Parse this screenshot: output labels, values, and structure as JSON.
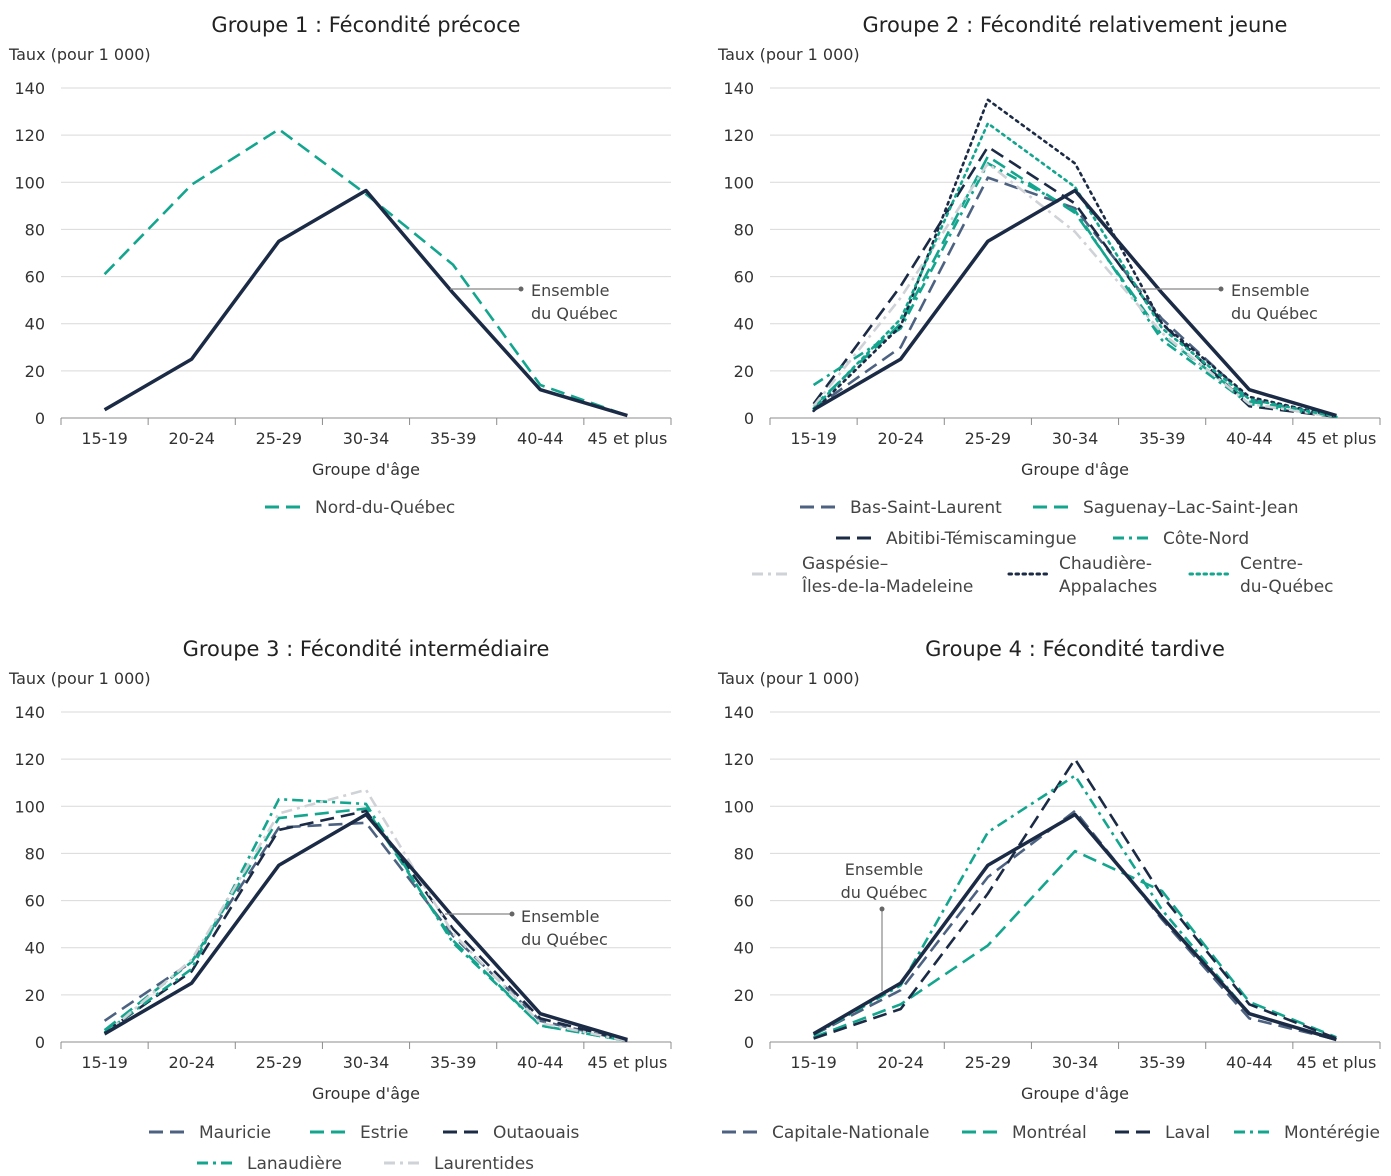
{
  "chart_data": [
    {
      "type": "line",
      "title": "Groupe 1 : Fécondité précoce",
      "ylabel": "Taux (pour 1 000)",
      "xlabel": "Groupe d'âge",
      "categories": [
        "15-19",
        "20-24",
        "25-29",
        "30-34",
        "35-39",
        "40-44",
        "45 et plus"
      ],
      "yticks": [
        "0",
        "20",
        "40",
        "60",
        "80",
        "100",
        "120",
        "140"
      ],
      "ylim": [
        0,
        140
      ],
      "grid": "horizontal",
      "annotation": "Ensemble du Québec",
      "reference": {
        "name": "Ensemble du Québec",
        "color": "#1b2a45",
        "values": [
          3.5,
          25,
          75,
          96.5,
          53,
          12,
          1
        ]
      },
      "series": [
        {
          "name": "Nord-du-Québec",
          "color": "#13a58e",
          "dash": "dash",
          "values": [
            61,
            99,
            122.5,
            95,
            65,
            14,
            1
          ]
        }
      ]
    },
    {
      "type": "line",
      "title": "Groupe 2 : Fécondité relativement jeune",
      "ylabel": "Taux (pour 1 000)",
      "xlabel": "Groupe d'âge",
      "categories": [
        "15-19",
        "20-24",
        "25-29",
        "30-34",
        "35-39",
        "40-44",
        "45 et plus"
      ],
      "yticks": [
        "0",
        "20",
        "40",
        "60",
        "80",
        "100",
        "120",
        "140"
      ],
      "ylim": [
        0,
        140
      ],
      "grid": "horizontal",
      "annotation": "Ensemble du Québec",
      "reference": {
        "name": "Ensemble du Québec",
        "color": "#1b2a45",
        "values": [
          3.5,
          25,
          75,
          96.5,
          53,
          12,
          1
        ]
      },
      "series": [
        {
          "name": "Bas-Saint-Laurent",
          "color": "#4d6281",
          "dash": "dash",
          "values": [
            4,
            30,
            102,
            89,
            42,
            8,
            0.5
          ]
        },
        {
          "name": "Saguenay–Lac-Saint-Jean",
          "color": "#13a58e",
          "dash": "dash",
          "values": [
            5,
            40,
            111,
            87,
            35,
            7,
            0.5
          ]
        },
        {
          "name": "Abitibi-Témiscamingue",
          "color": "#1b2a45",
          "dash": "dash",
          "values": [
            6,
            56,
            115,
            91,
            40,
            5,
            0.5
          ]
        },
        {
          "name": "Côte-Nord",
          "color": "#13a58e",
          "dash": "dashdot",
          "values": [
            14,
            38,
            108,
            88,
            33,
            6,
            0.5
          ]
        },
        {
          "name": "Gaspésie–Îles-de-la-Madeleine",
          "color": "#cfd2d6",
          "dash": "dashdot",
          "values": [
            5,
            51,
            108,
            79,
            36,
            6,
            0.5
          ]
        },
        {
          "name": "Chaudière-Appalaches",
          "color": "#1b2a45",
          "dash": "dot",
          "values": [
            3,
            39,
            135,
            108,
            40,
            9,
            0.5
          ]
        },
        {
          "name": "Centre-du-Québec",
          "color": "#13a58e",
          "dash": "dot",
          "values": [
            4,
            42,
            125,
            98,
            38,
            8,
            0.5
          ]
        }
      ],
      "legend_labels": [
        {
          "key": "Bas-Saint-Laurent",
          "lines": [
            "Bas-Saint-Laurent"
          ]
        },
        {
          "key": "Saguenay–Lac-Saint-Jean",
          "lines": [
            "Saguenay–Lac-Saint-Jean"
          ]
        },
        {
          "key": "Abitibi-Témiscamingue",
          "lines": [
            "Abitibi-Témiscamingue"
          ]
        },
        {
          "key": "Côte-Nord",
          "lines": [
            "Côte-Nord"
          ]
        },
        {
          "key": "Gaspésie–Îles-de-la-Madeleine",
          "lines": [
            "Gaspésie–",
            "Îles-de-la-Madeleine"
          ]
        },
        {
          "key": "Chaudière-Appalaches",
          "lines": [
            "Chaudière-",
            "Appalaches"
          ]
        },
        {
          "key": "Centre-du-Québec",
          "lines": [
            "Centre-",
            "du-Québec"
          ]
        }
      ]
    },
    {
      "type": "line",
      "title": "Groupe 3 : Fécondité intermédiaire",
      "ylabel": "Taux (pour 1 000)",
      "xlabel": "Groupe d'âge",
      "categories": [
        "15-19",
        "20-24",
        "25-29",
        "30-34",
        "35-39",
        "40-44",
        "45 et plus"
      ],
      "yticks": [
        "0",
        "20",
        "40",
        "60",
        "80",
        "100",
        "120",
        "140"
      ],
      "ylim": [
        0,
        140
      ],
      "grid": "horizontal",
      "annotation": "Ensemble du Québec",
      "reference": {
        "name": "Ensemble du Québec",
        "color": "#1b2a45",
        "values": [
          3.5,
          25,
          75,
          96.5,
          53,
          12,
          1
        ]
      },
      "series": [
        {
          "name": "Mauricie",
          "color": "#4d6281",
          "dash": "dash",
          "values": [
            9,
            34,
            91,
            93,
            45,
            9,
            0.5
          ]
        },
        {
          "name": "Estrie",
          "color": "#13a58e",
          "dash": "dash",
          "values": [
            5,
            34,
            95,
            99,
            43,
            7,
            0.5
          ]
        },
        {
          "name": "Outaouais",
          "color": "#1b2a45",
          "dash": "dash",
          "values": [
            4,
            30,
            90,
            98,
            48,
            10,
            0.5
          ]
        },
        {
          "name": "Lanaudière",
          "color": "#13a58e",
          "dash": "dashdot",
          "values": [
            4,
            31,
            103,
            101,
            42,
            7,
            0.5
          ]
        },
        {
          "name": "Laurentides",
          "color": "#cfd2d6",
          "dash": "dashdot",
          "values": [
            3,
            35,
            97,
            107,
            46,
            8,
            0.5
          ]
        }
      ]
    },
    {
      "type": "line",
      "title": "Groupe 4 : Fécondité tardive",
      "ylabel": "Taux (pour 1 000)",
      "xlabel": "Groupe d'âge",
      "categories": [
        "15-19",
        "20-24",
        "25-29",
        "30-34",
        "35-39",
        "40-44",
        "45 et plus"
      ],
      "yticks": [
        "0",
        "20",
        "40",
        "60",
        "80",
        "100",
        "120",
        "140"
      ],
      "ylim": [
        0,
        140
      ],
      "grid": "horizontal",
      "annotation": "Ensemble du Québec",
      "reference": {
        "name": "Ensemble du Québec",
        "color": "#1b2a45",
        "values": [
          3.5,
          25,
          75,
          96.5,
          53,
          12,
          1
        ]
      },
      "series": [
        {
          "name": "Capitale-Nationale",
          "color": "#4d6281",
          "dash": "dash",
          "values": [
            3,
            22,
            70,
            98,
            52,
            10,
            1
          ]
        },
        {
          "name": "Montréal",
          "color": "#13a58e",
          "dash": "dash",
          "values": [
            2,
            16,
            41,
            81,
            64,
            17,
            2
          ]
        },
        {
          "name": "Laval",
          "color": "#1b2a45",
          "dash": "dash",
          "values": [
            1.5,
            14,
            63,
            120,
            62,
            16,
            1.5
          ]
        },
        {
          "name": "Montérégie",
          "color": "#13a58e",
          "dash": "dashdot",
          "values": [
            3,
            24,
            89,
            113,
            56,
            12,
            1
          ]
        }
      ]
    }
  ]
}
